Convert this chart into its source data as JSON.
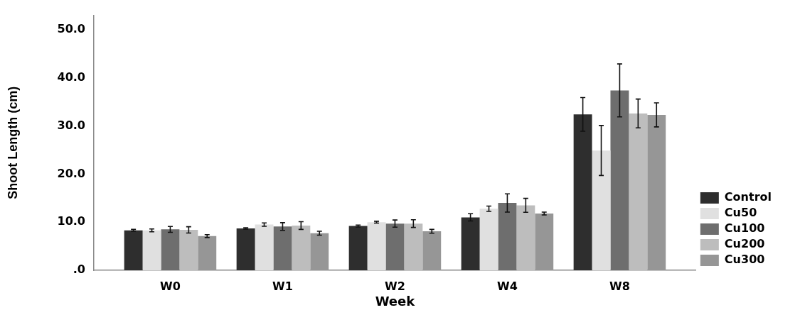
{
  "chart_data": {
    "type": "bar",
    "xlabel": "Week",
    "ylabel": "Shoot Length (cm)",
    "categories": [
      "W0",
      "W1",
      "W2",
      "W4",
      "W8"
    ],
    "series": [
      {
        "name": "Control",
        "color": "#2e2e2e",
        "values": [
          8.3,
          8.7,
          9.2,
          11.0,
          32.4
        ],
        "errors": [
          0.2,
          0.15,
          0.2,
          0.75,
          3.5
        ]
      },
      {
        "name": "Cu50",
        "color": "#e0e0e0",
        "values": [
          8.3,
          9.5,
          10.0,
          12.8,
          24.9
        ],
        "errors": [
          0.3,
          0.35,
          0.2,
          0.55,
          5.2
        ]
      },
      {
        "name": "Cu100",
        "color": "#6e6e6e",
        "values": [
          8.5,
          9.1,
          9.7,
          14.0,
          37.4
        ],
        "errors": [
          0.6,
          0.8,
          0.75,
          1.9,
          5.5
        ]
      },
      {
        "name": "Cu200",
        "color": "#bdbdbd",
        "values": [
          8.4,
          9.3,
          9.7,
          13.5,
          32.6
        ],
        "errors": [
          0.65,
          0.8,
          0.8,
          1.45,
          3.0
        ]
      },
      {
        "name": "Cu300",
        "color": "#969696",
        "values": [
          7.1,
          7.7,
          8.1,
          11.8,
          32.3
        ],
        "errors": [
          0.3,
          0.4,
          0.4,
          0.3,
          2.5
        ]
      }
    ],
    "ylim": [
      0,
      53
    ],
    "yticks": [
      {
        "value": 0,
        "label": ".0"
      },
      {
        "value": 10,
        "label": "10.0"
      },
      {
        "value": 20,
        "label": "20.0"
      },
      {
        "value": 30,
        "label": "30.0"
      },
      {
        "value": 40,
        "label": "40.0"
      },
      {
        "value": 50,
        "label": "50.0"
      }
    ],
    "grid": false,
    "legend": "right"
  }
}
